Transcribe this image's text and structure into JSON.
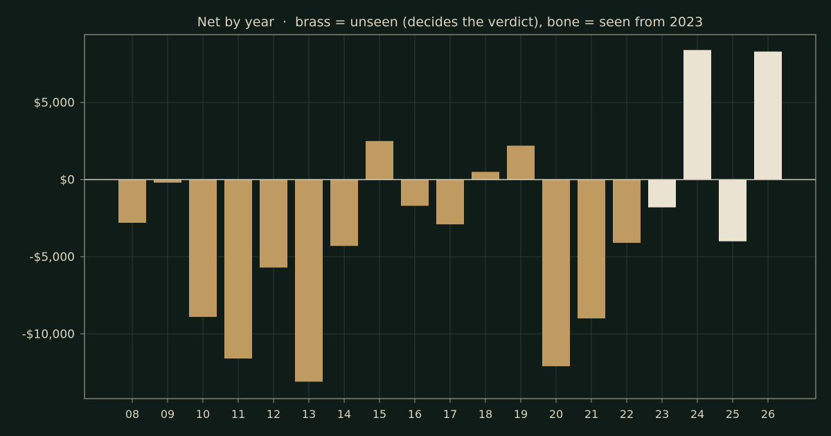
{
  "colors": {
    "background": "#0f1c17",
    "unseen": "#bf9b62",
    "seen": "#ebe3d2",
    "text": "#d9d2bf",
    "frame": "#9a9a86",
    "grid": "#2b3a33",
    "zero_line": "#d6cfbe"
  },
  "chart_data": {
    "type": "bar",
    "title": "Net by year  ·  brass = unseen (decides the verdict), bone = seen from 2023",
    "xlabel": "",
    "ylabel": "",
    "ylim": [
      -14200,
      9400
    ],
    "yticks": [
      5000,
      0,
      -5000,
      -10000
    ],
    "ytick_labels": [
      "$5,000",
      "$0",
      "-$5,000",
      "-$10,000"
    ],
    "grid": true,
    "categories": [
      "08",
      "09",
      "10",
      "11",
      "12",
      "13",
      "14",
      "15",
      "16",
      "17",
      "18",
      "19",
      "20",
      "21",
      "22",
      "23",
      "24",
      "25",
      "26"
    ],
    "values": [
      -2800,
      -200,
      -8900,
      -11600,
      -5700,
      -13100,
      -4300,
      2500,
      -1700,
      -2900,
      500,
      2200,
      -12100,
      -9000,
      -4100,
      -1800,
      8400,
      -4000,
      8300
    ],
    "group": [
      "unseen",
      "unseen",
      "unseen",
      "unseen",
      "unseen",
      "unseen",
      "unseen",
      "unseen",
      "unseen",
      "unseen",
      "unseen",
      "unseen",
      "unseen",
      "unseen",
      "unseen",
      "seen",
      "seen",
      "seen",
      "seen"
    ]
  }
}
